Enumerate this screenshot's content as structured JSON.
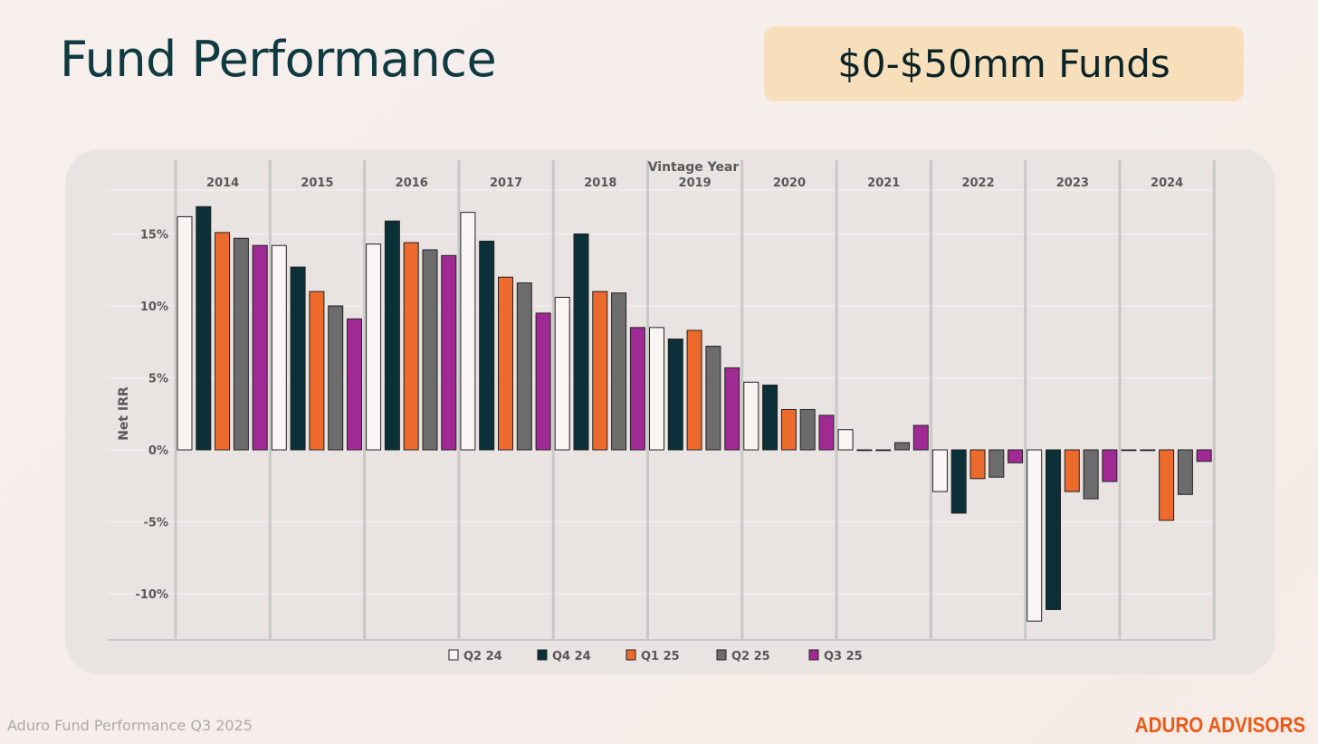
{
  "page": {
    "title": "Fund Performance",
    "badge": "$0-$50mm Funds",
    "footer_left": "Aduro Fund Performance Q3 2025",
    "footer_right": "ADURO ADVISORS"
  },
  "colors": {
    "title": "#0f3a40",
    "badge_bg": "#f8dfbb",
    "brand": "#ea5a18"
  },
  "chart_data": {
    "type": "bar",
    "title": "",
    "xlabel": "Vintage Year",
    "ylabel": "Net IRR",
    "ylim": [
      -13,
      18
    ],
    "yticks": [
      -10,
      -5,
      0,
      5,
      10,
      15
    ],
    "ytick_labels": [
      "-10%",
      "-5%",
      "0%",
      "5%",
      "10%",
      "15%"
    ],
    "categories": [
      "2014",
      "2015",
      "2016",
      "2017",
      "2018",
      "2019",
      "2020",
      "2021",
      "2022",
      "2023",
      "2024"
    ],
    "legend_position": "bottom",
    "grid": true,
    "series": [
      {
        "name": "Q2 24",
        "color": "#f8f5f3",
        "values": [
          16.2,
          14.2,
          14.3,
          16.5,
          10.6,
          8.5,
          4.7,
          1.4,
          -2.9,
          -11.9,
          0.0
        ]
      },
      {
        "name": "Q4 24",
        "color": "#0c3038",
        "values": [
          16.9,
          12.7,
          15.9,
          14.5,
          15.0,
          7.7,
          4.5,
          0.0,
          -4.4,
          -11.1,
          0.0
        ]
      },
      {
        "name": "Q1 25",
        "color": "#ec6a2c",
        "values": [
          15.1,
          11.0,
          14.4,
          12.0,
          11.0,
          8.3,
          2.8,
          0.0,
          -2.0,
          -2.9,
          -4.9
        ]
      },
      {
        "name": "Q2 25",
        "color": "#6c6c6c",
        "values": [
          14.7,
          10.0,
          13.9,
          11.6,
          10.9,
          7.2,
          2.8,
          0.5,
          -1.9,
          -3.4,
          -3.1
        ]
      },
      {
        "name": "Q3 25",
        "color": "#a02a94",
        "values": [
          14.2,
          9.1,
          13.5,
          9.5,
          8.5,
          5.7,
          2.4,
          1.7,
          -0.9,
          -2.2,
          -0.8
        ]
      }
    ]
  }
}
